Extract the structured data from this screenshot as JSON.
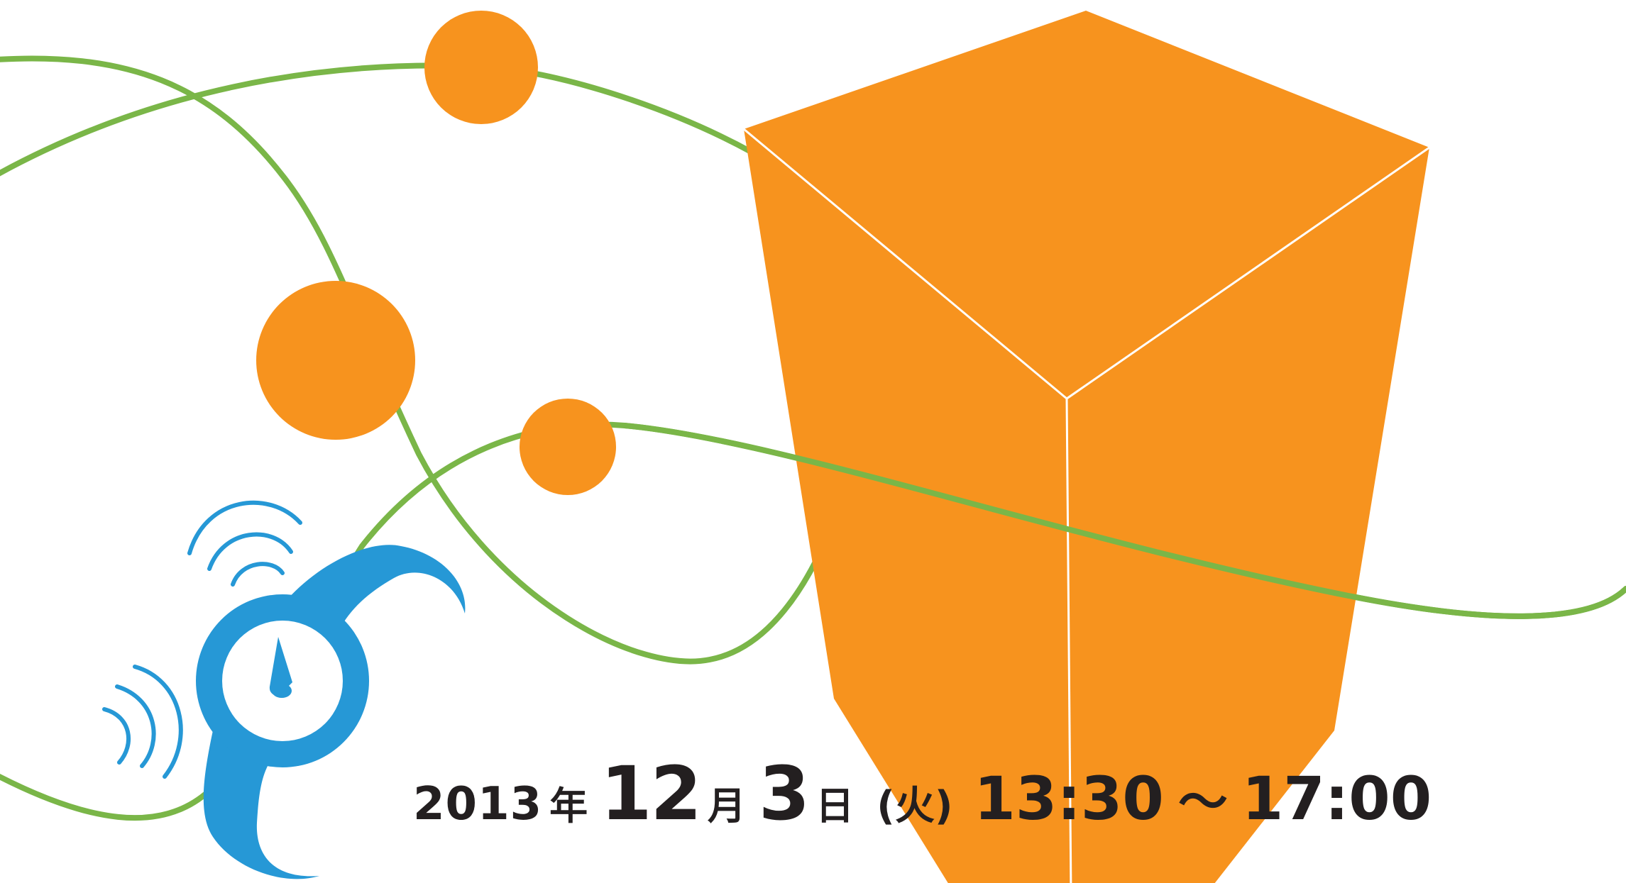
{
  "colors": {
    "orange": "#f7931e",
    "green": "#7ab648",
    "blue": "#2698d6",
    "text": "#231f20",
    "background": "#ffffff"
  },
  "icons": {
    "alarm_clock": "alarm-clock-icon"
  },
  "event": {
    "year": "2013",
    "year_unit": "年",
    "month": "12",
    "month_unit": "月",
    "day": "3",
    "day_unit": "日",
    "weekday": "(火)",
    "start_time": "13:30",
    "separator": "～",
    "end_time": "17:00"
  }
}
